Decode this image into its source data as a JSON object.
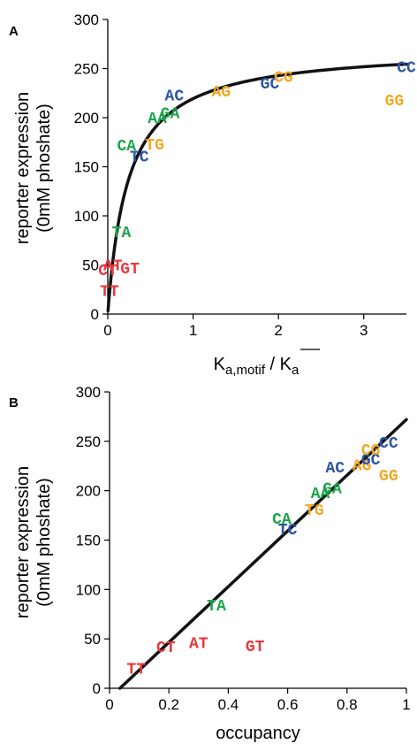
{
  "colors": {
    "red": "#e8383d",
    "green": "#1aa64a",
    "blue": "#2b55a6",
    "orange": "#f5a623"
  },
  "chart_data": [
    {
      "type": "scatter",
      "panel_label": "A",
      "xlabel_main": "K",
      "xlabel_sub1": "a,motif",
      "xlabel_sep": " / ",
      "xlabel_main2": "K",
      "xlabel_sub2": "a",
      "ylabel_line1": "reporter expression",
      "ylabel_line2": "(0mM phoshate)",
      "xlim": [
        0,
        3.5
      ],
      "ylim": [
        0,
        300
      ],
      "xticks": [
        0,
        1,
        2,
        3
      ],
      "yticks": [
        0,
        50,
        100,
        150,
        200,
        250,
        300
      ],
      "points": [
        {
          "label": "TT",
          "x": 0.02,
          "y": 24,
          "color": "red"
        },
        {
          "label": "CT",
          "x": 0.0,
          "y": 45,
          "color": "red"
        },
        {
          "label": "AT",
          "x": 0.06,
          "y": 50,
          "color": "red"
        },
        {
          "label": "GT",
          "x": 0.26,
          "y": 47,
          "color": "red"
        },
        {
          "label": "TA",
          "x": 0.16,
          "y": 84,
          "color": "green"
        },
        {
          "label": "CA",
          "x": 0.22,
          "y": 172,
          "color": "green"
        },
        {
          "label": "TC",
          "x": 0.37,
          "y": 161,
          "color": "blue"
        },
        {
          "label": "TG",
          "x": 0.55,
          "y": 173,
          "color": "orange"
        },
        {
          "label": "AA",
          "x": 0.58,
          "y": 200,
          "color": "green"
        },
        {
          "label": "GA",
          "x": 0.73,
          "y": 205,
          "color": "green"
        },
        {
          "label": "AC",
          "x": 0.78,
          "y": 223,
          "color": "blue"
        },
        {
          "label": "AG",
          "x": 1.33,
          "y": 227,
          "color": "orange"
        },
        {
          "label": "GC",
          "x": 1.9,
          "y": 235,
          "color": "blue"
        },
        {
          "label": "CG",
          "x": 2.06,
          "y": 242,
          "color": "orange"
        },
        {
          "label": "CC",
          "x": 3.5,
          "y": 252,
          "color": "blue"
        },
        {
          "label": "GG",
          "x": 3.36,
          "y": 218,
          "color": "orange"
        }
      ],
      "fit": {
        "kind": "saturating",
        "vmax": 272,
        "k": 0.24
      }
    },
    {
      "type": "scatter",
      "panel_label": "B",
      "xlabel": "occupancy",
      "ylabel_line1": "reporter expression",
      "ylabel_line2": "(0mM phoshate)",
      "xlim": [
        0,
        1
      ],
      "ylim": [
        0,
        300
      ],
      "xticks": [
        "0",
        "0.2",
        "0.4",
        "0.6",
        "0.8",
        "1"
      ],
      "yticks": [
        0,
        50,
        100,
        150,
        200,
        250,
        300
      ],
      "points": [
        {
          "label": "TT",
          "x": 0.09,
          "y": 20,
          "color": "red"
        },
        {
          "label": "CT",
          "x": 0.19,
          "y": 42,
          "color": "red"
        },
        {
          "label": "AT",
          "x": 0.3,
          "y": 46,
          "color": "red"
        },
        {
          "label": "GT",
          "x": 0.49,
          "y": 43,
          "color": "red"
        },
        {
          "label": "TA",
          "x": 0.36,
          "y": 84,
          "color": "green"
        },
        {
          "label": "CA",
          "x": 0.58,
          "y": 172,
          "color": "green"
        },
        {
          "label": "TC",
          "x": 0.6,
          "y": 161,
          "color": "blue"
        },
        {
          "label": "TG",
          "x": 0.69,
          "y": 181,
          "color": "orange"
        },
        {
          "label": "AA",
          "x": 0.71,
          "y": 198,
          "color": "green"
        },
        {
          "label": "GA",
          "x": 0.75,
          "y": 203,
          "color": "green"
        },
        {
          "label": "AC",
          "x": 0.76,
          "y": 224,
          "color": "blue"
        },
        {
          "label": "AG",
          "x": 0.85,
          "y": 226,
          "color": "orange"
        },
        {
          "label": "GC",
          "x": 0.88,
          "y": 232,
          "color": "blue"
        },
        {
          "label": "CG",
          "x": 0.88,
          "y": 242,
          "color": "orange"
        },
        {
          "label": "CC",
          "x": 0.94,
          "y": 249,
          "color": "blue"
        },
        {
          "label": "GG",
          "x": 0.94,
          "y": 216,
          "color": "orange"
        }
      ],
      "fit": {
        "kind": "linear",
        "x": [
          0.035,
          1.0
        ],
        "y": [
          0,
          272
        ]
      }
    }
  ]
}
